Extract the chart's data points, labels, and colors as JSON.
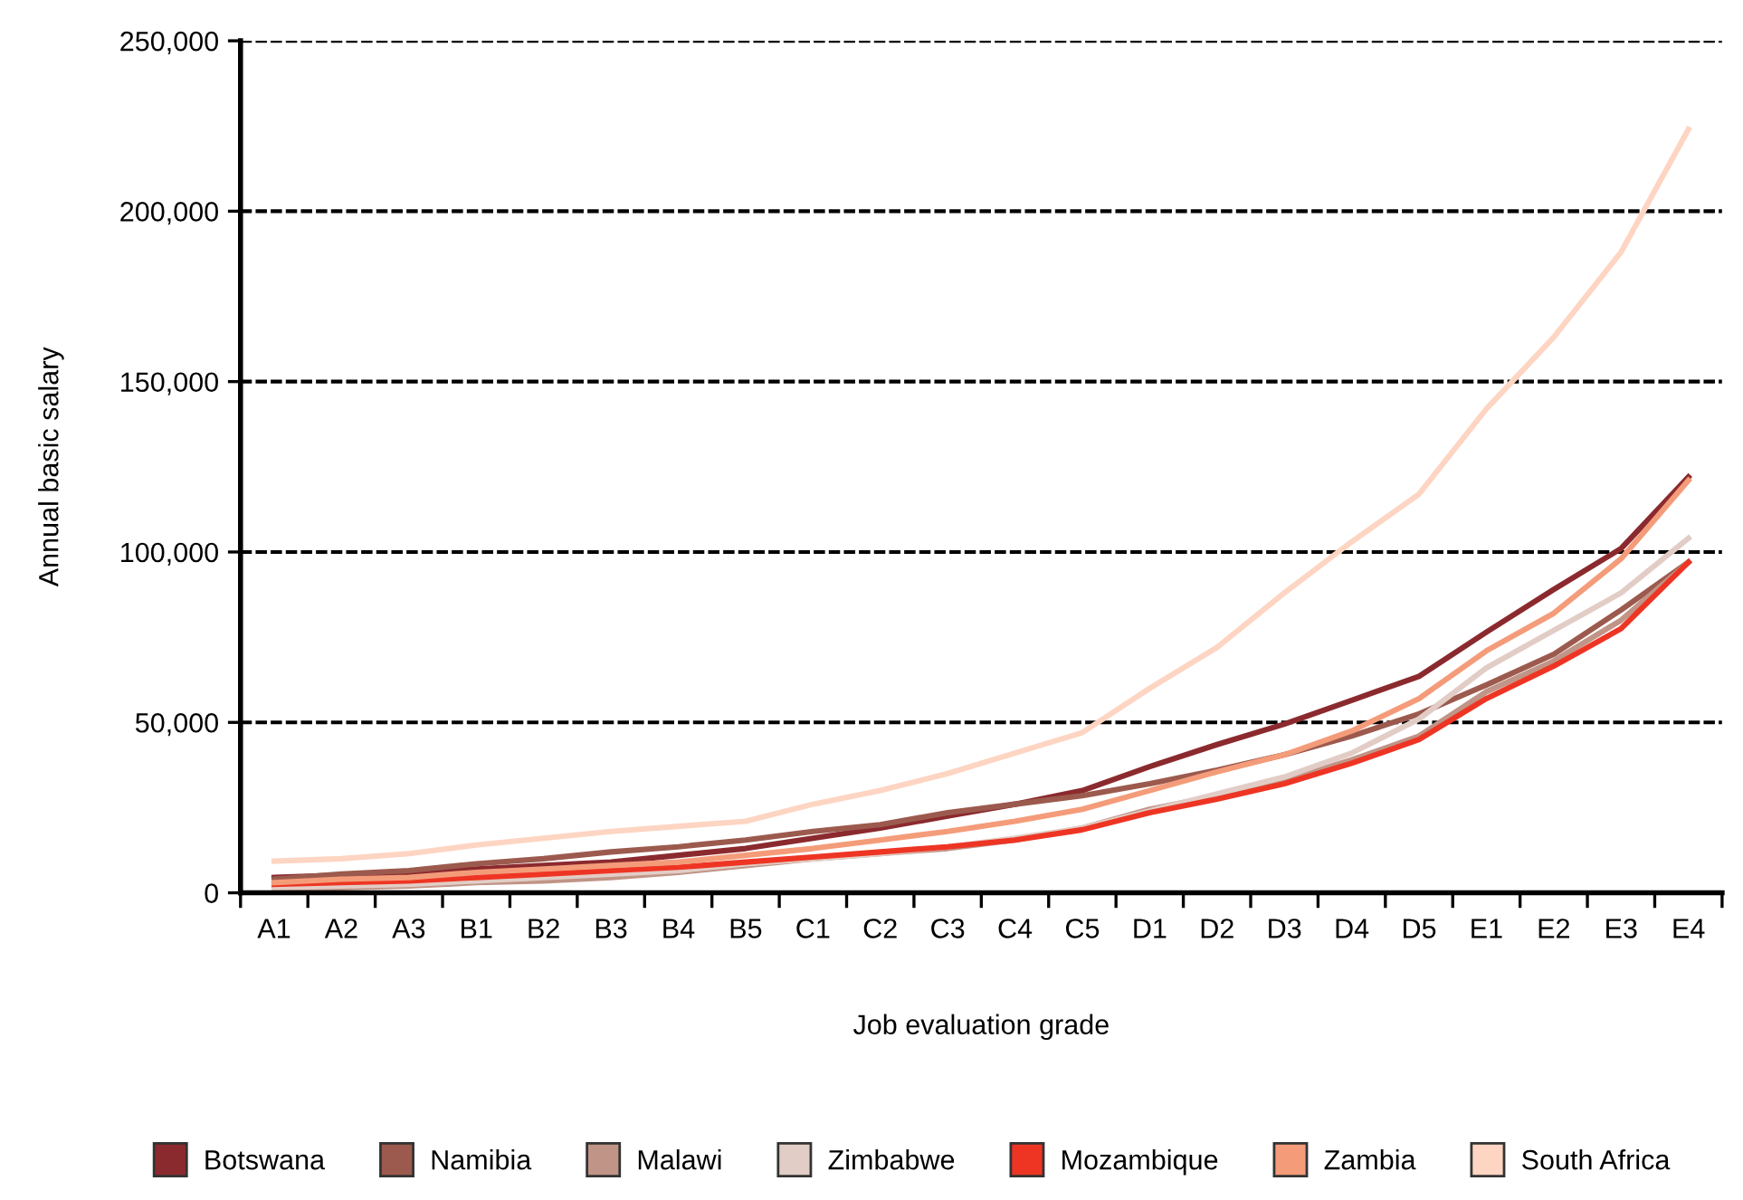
{
  "chart_data": {
    "type": "line",
    "xlabel": "Job evaluation grade",
    "ylabel": "Annual basic salary",
    "categories": [
      "A1",
      "A2",
      "A3",
      "B1",
      "B2",
      "B3",
      "B4",
      "B5",
      "C1",
      "C2",
      "C3",
      "C4",
      "C5",
      "D1",
      "D2",
      "D3",
      "D4",
      "D5",
      "E1",
      "E2",
      "E3",
      "E4"
    ],
    "series": [
      {
        "name": "Botswana",
        "color": "#8b2a2e",
        "values": [
          4500,
          5200,
          5800,
          7000,
          8000,
          9000,
          11000,
          13000,
          16000,
          19000,
          22500,
          26000,
          30000,
          37000,
          43500,
          49500,
          56500,
          63500,
          76500,
          89000,
          101000,
          122000
        ]
      },
      {
        "name": "Namibia",
        "color": "#9c5a4e",
        "values": [
          4000,
          5500,
          6500,
          8500,
          10000,
          12000,
          13500,
          15500,
          18000,
          20000,
          23500,
          26000,
          28500,
          32000,
          36000,
          40500,
          46000,
          52500,
          61000,
          70000,
          83000,
          97000
        ]
      },
      {
        "name": "Malawi",
        "color": "#c09486",
        "values": [
          1000,
          1500,
          2000,
          3000,
          3500,
          4500,
          6000,
          8000,
          10000,
          11500,
          13000,
          15500,
          19000,
          24500,
          28500,
          33000,
          39000,
          46000,
          59000,
          68000,
          80000,
          97000
        ]
      },
      {
        "name": "Zimbabwe",
        "color": "#e2cdc6",
        "values": [
          1500,
          2000,
          2500,
          3500,
          4500,
          5500,
          6500,
          8500,
          10000,
          11500,
          13500,
          16000,
          19000,
          24000,
          29000,
          34000,
          41000,
          51000,
          66000,
          77000,
          88000,
          104000
        ]
      },
      {
        "name": "Mozambique",
        "color": "#ee3524",
        "values": [
          2500,
          3000,
          3500,
          4500,
          5500,
          6500,
          7500,
          9000,
          10500,
          12000,
          13500,
          15500,
          18500,
          23500,
          27500,
          32000,
          38000,
          45000,
          57000,
          66500,
          77500,
          97000
        ]
      },
      {
        "name": "Zambia",
        "color": "#f49c7a",
        "values": [
          3000,
          4000,
          4500,
          6000,
          7000,
          8000,
          9000,
          11000,
          13000,
          15500,
          18000,
          21000,
          24500,
          30000,
          35500,
          40500,
          47500,
          57000,
          71000,
          82000,
          98000,
          121000
        ]
      },
      {
        "name": "South Africa",
        "color": "#fdd5c2",
        "values": [
          9300,
          10000,
          11500,
          14000,
          16000,
          18000,
          19500,
          21000,
          26000,
          30000,
          35000,
          41000,
          47000,
          60000,
          72000,
          88000,
          103000,
          117000,
          142000,
          163000,
          188000,
          224000
        ]
      }
    ],
    "ylim": [
      0,
      250000
    ],
    "yticks": [
      {
        "value": 0,
        "label": "0"
      },
      {
        "value": 50000,
        "label": "50,000"
      },
      {
        "value": 100000,
        "label": "100,000"
      },
      {
        "value": 150000,
        "label": "150,000"
      },
      {
        "value": 200000,
        "label": "200,000"
      },
      {
        "value": 250000,
        "label": "250,000"
      }
    ],
    "grid": "y",
    "legend": "bottom",
    "marker": "none",
    "line_style": "solid"
  }
}
